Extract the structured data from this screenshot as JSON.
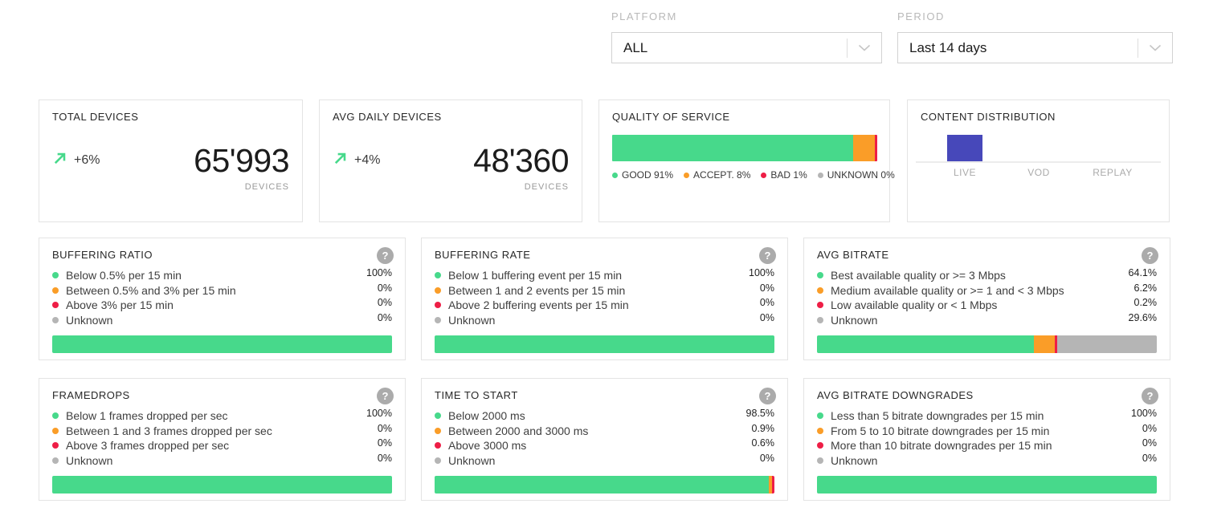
{
  "colors": {
    "good": "#47d98b",
    "accept": "#fa9d28",
    "bad": "#ee1e46",
    "unknown": "#b5b5b5",
    "content_bar": "#4748ba"
  },
  "controls": {
    "platform": {
      "label": "PLATFORM",
      "value": "ALL"
    },
    "period": {
      "label": "PERIOD",
      "value": "Last 14 days"
    }
  },
  "kpi_cards": [
    {
      "title": "TOTAL DEVICES",
      "trend": "+6%",
      "value": "65'993",
      "unit": "DEVICES"
    },
    {
      "title": "AVG DAILY DEVICES",
      "trend": "+4%",
      "value": "48'360",
      "unit": "DEVICES"
    }
  ],
  "quality_of_service": {
    "title": "QUALITY OF SERVICE",
    "segments": [
      {
        "label": "GOOD",
        "value": "91%",
        "pct": 91,
        "color": "good"
      },
      {
        "label": "ACCEPT.",
        "value": "8%",
        "pct": 8,
        "color": "accept"
      },
      {
        "label": "BAD",
        "value": "1%",
        "pct": 1,
        "color": "bad"
      },
      {
        "label": "UNKNOWN",
        "value": "0%",
        "pct": 0,
        "color": "unknown"
      }
    ]
  },
  "content_distribution": {
    "title": "CONTENT DISTRIBUTION",
    "categories": [
      "LIVE",
      "VOD",
      "REPLAY"
    ],
    "values": [
      100,
      0,
      0
    ]
  },
  "help_icon": "?",
  "metric_cards": [
    {
      "title": "BUFFERING RATIO",
      "rows": [
        {
          "color": "good",
          "label": "Below 0.5% per 15 min",
          "value": "100%",
          "pct": 100
        },
        {
          "color": "accept",
          "label": "Between 0.5% and 3% per 15 min",
          "value": "0%",
          "pct": 0
        },
        {
          "color": "bad",
          "label": "Above 3% per 15 min",
          "value": "0%",
          "pct": 0
        },
        {
          "color": "unknown",
          "label": "Unknown",
          "value": "0%",
          "pct": 0
        }
      ]
    },
    {
      "title": "BUFFERING RATE",
      "rows": [
        {
          "color": "good",
          "label": "Below 1 buffering event per 15 min",
          "value": "100%",
          "pct": 100
        },
        {
          "color": "accept",
          "label": "Between 1 and 2 events per 15 min",
          "value": "0%",
          "pct": 0
        },
        {
          "color": "bad",
          "label": "Above 2 buffering events per 15 min",
          "value": "0%",
          "pct": 0
        },
        {
          "color": "unknown",
          "label": "Unknown",
          "value": "0%",
          "pct": 0
        }
      ]
    },
    {
      "title": "AVG BITRATE",
      "rows": [
        {
          "color": "good",
          "label": "Best available quality or >= 3 Mbps",
          "value": "64.1%",
          "pct": 64.1
        },
        {
          "color": "accept",
          "label": "Medium available quality or >= 1 and < 3 Mbps",
          "value": "6.2%",
          "pct": 6.2
        },
        {
          "color": "bad",
          "label": "Low available quality or < 1 Mbps",
          "value": "0.2%",
          "pct": 0.2
        },
        {
          "color": "unknown",
          "label": "Unknown",
          "value": "29.6%",
          "pct": 29.6
        }
      ]
    },
    {
      "title": "FRAMEDROPS",
      "rows": [
        {
          "color": "good",
          "label": "Below 1 frames dropped per sec",
          "value": "100%",
          "pct": 100
        },
        {
          "color": "accept",
          "label": "Between 1 and 3 frames dropped per sec",
          "value": "0%",
          "pct": 0
        },
        {
          "color": "bad",
          "label": "Above 3 frames dropped per sec",
          "value": "0%",
          "pct": 0
        },
        {
          "color": "unknown",
          "label": "Unknown",
          "value": "0%",
          "pct": 0
        }
      ]
    },
    {
      "title": "TIME TO START",
      "rows": [
        {
          "color": "good",
          "label": "Below 2000 ms",
          "value": "98.5%",
          "pct": 98.5
        },
        {
          "color": "accept",
          "label": "Between 2000 and 3000 ms",
          "value": "0.9%",
          "pct": 0.9
        },
        {
          "color": "bad",
          "label": "Above 3000 ms",
          "value": "0.6%",
          "pct": 0.6
        },
        {
          "color": "unknown",
          "label": "Unknown",
          "value": "0%",
          "pct": 0
        }
      ]
    },
    {
      "title": "AVG BITRATE DOWNGRADES",
      "rows": [
        {
          "color": "good",
          "label": "Less than 5 bitrate downgrades per 15 min",
          "value": "100%",
          "pct": 100
        },
        {
          "color": "accept",
          "label": "From 5 to 10 bitrate downgrades per 15 min",
          "value": "0%",
          "pct": 0
        },
        {
          "color": "bad",
          "label": "More than 10 bitrate downgrades per 15 min",
          "value": "0%",
          "pct": 0
        },
        {
          "color": "unknown",
          "label": "Unknown",
          "value": "0%",
          "pct": 0
        }
      ]
    }
  ],
  "chart_data": [
    {
      "type": "bar",
      "layout": "horizontal-stacked",
      "title": "QUALITY OF SERVICE",
      "categories": [
        "GOOD",
        "ACCEPT.",
        "BAD",
        "UNKNOWN"
      ],
      "values": [
        91,
        8,
        1,
        0
      ],
      "unit": "%"
    },
    {
      "type": "bar",
      "title": "CONTENT DISTRIBUTION",
      "categories": [
        "LIVE",
        "VOD",
        "REPLAY"
      ],
      "values": [
        100,
        0,
        0
      ]
    },
    {
      "type": "bar",
      "layout": "horizontal-stacked",
      "title": "BUFFERING RATIO",
      "categories": [
        "Below 0.5% per 15 min",
        "Between 0.5% and 3% per 15 min",
        "Above 3% per 15 min",
        "Unknown"
      ],
      "values": [
        100,
        0,
        0,
        0
      ],
      "unit": "%"
    },
    {
      "type": "bar",
      "layout": "horizontal-stacked",
      "title": "BUFFERING RATE",
      "categories": [
        "Below 1 buffering event per 15 min",
        "Between 1 and 2 events per 15 min",
        "Above 2 buffering events per 15 min",
        "Unknown"
      ],
      "values": [
        100,
        0,
        0,
        0
      ],
      "unit": "%"
    },
    {
      "type": "bar",
      "layout": "horizontal-stacked",
      "title": "AVG BITRATE",
      "categories": [
        "Best available quality or >= 3 Mbps",
        "Medium available quality or >= 1 and < 3 Mbps",
        "Low available quality or < 1 Mbps",
        "Unknown"
      ],
      "values": [
        64.1,
        6.2,
        0.2,
        29.6
      ],
      "unit": "%"
    },
    {
      "type": "bar",
      "layout": "horizontal-stacked",
      "title": "FRAMEDROPS",
      "categories": [
        "Below 1 frames dropped per sec",
        "Between 1 and 3 frames dropped per sec",
        "Above 3 frames dropped per sec",
        "Unknown"
      ],
      "values": [
        100,
        0,
        0,
        0
      ],
      "unit": "%"
    },
    {
      "type": "bar",
      "layout": "horizontal-stacked",
      "title": "TIME TO START",
      "categories": [
        "Below 2000 ms",
        "Between 2000 and 3000 ms",
        "Above 3000 ms",
        "Unknown"
      ],
      "values": [
        98.5,
        0.9,
        0.6,
        0
      ],
      "unit": "%"
    },
    {
      "type": "bar",
      "layout": "horizontal-stacked",
      "title": "AVG BITRATE DOWNGRADES",
      "categories": [
        "Less than 5 bitrate downgrades per 15 min",
        "From 5 to 10 bitrate downgrades per 15 min",
        "More than 10 bitrate downgrades per 15 min",
        "Unknown"
      ],
      "values": [
        100,
        0,
        0,
        0
      ],
      "unit": "%"
    }
  ]
}
